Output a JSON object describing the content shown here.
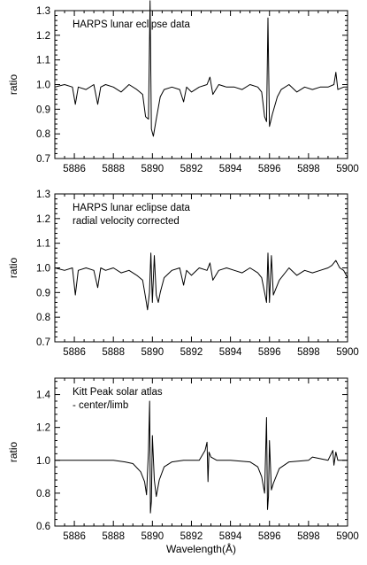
{
  "chart_data": [
    {
      "type": "line",
      "annotation_lines": [
        "HARPS lunar eclipse data"
      ],
      "ylabel": "ratio",
      "xlabel": "",
      "xlim": [
        5885,
        5900
      ],
      "ylim": [
        0.7,
        1.3
      ],
      "xticks": [
        5886,
        5888,
        5890,
        5892,
        5894,
        5896,
        5898,
        5900
      ],
      "yticks": [
        0.7,
        0.8,
        0.9,
        1.0,
        1.1,
        1.2,
        1.3
      ],
      "ytick_labels": [
        "0.7",
        "0.8",
        "0.9",
        "1.0",
        "1.1",
        "1.2",
        "1.3"
      ],
      "series": [
        {
          "x": [
            5885.0,
            5885.5,
            5885.9,
            5886.05,
            5886.2,
            5886.6,
            5887.0,
            5887.2,
            5887.35,
            5887.6,
            5888.0,
            5888.4,
            5888.8,
            5889.2,
            5889.5,
            5889.65,
            5889.8,
            5889.88,
            5889.95,
            5890.05,
            5890.2,
            5890.4,
            5890.6,
            5891.0,
            5891.4,
            5891.6,
            5891.75,
            5892.0,
            5892.4,
            5892.8,
            5892.95,
            5893.1,
            5893.4,
            5893.8,
            5894.2,
            5894.6,
            5895.0,
            5895.4,
            5895.6,
            5895.75,
            5895.85,
            5895.92,
            5896.0,
            5896.15,
            5896.4,
            5896.6,
            5897.0,
            5897.4,
            5897.8,
            5898.2,
            5898.6,
            5899.0,
            5899.3,
            5899.4,
            5899.5,
            5899.8,
            5900.0
          ],
          "y": [
            0.99,
            1.0,
            0.99,
            0.92,
            0.99,
            0.98,
            1.0,
            0.92,
            0.99,
            1.0,
            0.99,
            0.97,
            1.0,
            0.98,
            0.96,
            0.87,
            0.86,
            1.34,
            0.82,
            0.79,
            0.86,
            0.95,
            0.98,
            0.99,
            0.98,
            0.93,
            0.99,
            0.97,
            0.99,
            1.0,
            1.03,
            0.96,
            1.0,
            0.99,
            0.99,
            0.98,
            1.0,
            0.99,
            0.97,
            0.87,
            0.85,
            1.27,
            0.83,
            0.88,
            0.95,
            0.98,
            1.0,
            0.97,
            0.99,
            0.98,
            0.99,
            0.99,
            1.0,
            1.05,
            0.98,
            0.99,
            0.99
          ]
        }
      ]
    },
    {
      "type": "line",
      "annotation_lines": [
        "HARPS lunar eclipse data",
        "radial velocity corrected"
      ],
      "ylabel": "ratio",
      "xlabel": "",
      "xlim": [
        5885,
        5900
      ],
      "ylim": [
        0.7,
        1.3
      ],
      "xticks": [
        5886,
        5888,
        5890,
        5892,
        5894,
        5896,
        5898,
        5900
      ],
      "yticks": [
        0.7,
        0.8,
        0.9,
        1.0,
        1.1,
        1.2,
        1.3
      ],
      "ytick_labels": [
        "0.7",
        "0.8",
        "0.9",
        "1.0",
        "1.1",
        "1.2",
        "1.3"
      ],
      "series": [
        {
          "x": [
            5885.0,
            5885.5,
            5885.9,
            5886.05,
            5886.2,
            5886.6,
            5887.0,
            5887.2,
            5887.35,
            5887.6,
            5888.0,
            5888.4,
            5888.8,
            5889.2,
            5889.5,
            5889.65,
            5889.75,
            5889.85,
            5889.92,
            5890.0,
            5890.1,
            5890.2,
            5890.3,
            5890.4,
            5890.6,
            5891.0,
            5891.4,
            5891.6,
            5891.75,
            5892.0,
            5892.4,
            5892.8,
            5892.95,
            5893.1,
            5893.4,
            5893.8,
            5894.2,
            5894.6,
            5895.0,
            5895.4,
            5895.6,
            5895.75,
            5895.85,
            5895.92,
            5896.0,
            5896.1,
            5896.2,
            5896.5,
            5897.0,
            5897.4,
            5897.8,
            5898.2,
            5898.6,
            5899.0,
            5899.2,
            5899.4,
            5899.6,
            5899.8,
            5900.0
          ],
          "y": [
            1.0,
            0.99,
            1.0,
            0.89,
            0.99,
            1.0,
            0.99,
            0.92,
            1.0,
            0.99,
            1.0,
            0.98,
            0.99,
            0.97,
            0.95,
            0.88,
            0.83,
            0.9,
            1.06,
            0.86,
            1.05,
            0.89,
            0.86,
            0.9,
            0.96,
            0.99,
            1.0,
            0.93,
            0.99,
            0.97,
            1.0,
            0.99,
            1.02,
            0.95,
            0.99,
            1.0,
            0.99,
            0.98,
            1.0,
            0.98,
            0.96,
            0.9,
            0.86,
            1.06,
            0.86,
            1.05,
            0.89,
            0.95,
            1.0,
            0.97,
            0.99,
            0.98,
            0.99,
            1.0,
            1.01,
            1.03,
            1.0,
            0.99,
            0.96
          ]
        }
      ]
    },
    {
      "type": "line",
      "annotation_lines": [
        "Kitt Peak solar atlas",
        "- center/limb"
      ],
      "ylabel": "ratio",
      "xlabel": "Wavelength(Å)",
      "xlim": [
        5885,
        5900
      ],
      "ylim": [
        0.6,
        1.5
      ],
      "xticks": [
        5886,
        5888,
        5890,
        5892,
        5894,
        5896,
        5898,
        5900
      ],
      "yticks": [
        0.6,
        0.8,
        1.0,
        1.2,
        1.4
      ],
      "ytick_labels": [
        "0.6",
        "0.8",
        "1.0",
        "1.2",
        "1.4"
      ],
      "series": [
        {
          "x": [
            5885.0,
            5886.0,
            5887.0,
            5888.0,
            5888.6,
            5889.0,
            5889.4,
            5889.6,
            5889.7,
            5889.8,
            5889.86,
            5889.9,
            5889.95,
            5890.0,
            5890.1,
            5890.2,
            5890.35,
            5890.6,
            5891.0,
            5891.6,
            5892.4,
            5892.7,
            5892.8,
            5892.85,
            5892.9,
            5893.0,
            5893.3,
            5894.0,
            5895.0,
            5895.4,
            5895.6,
            5895.75,
            5895.85,
            5895.9,
            5895.95,
            5896.0,
            5896.1,
            5896.2,
            5896.5,
            5897.0,
            5898.0,
            5898.2,
            5899.0,
            5899.25,
            5899.3,
            5899.4,
            5899.5,
            5900.0
          ],
          "y": [
            1.0,
            1.0,
            1.0,
            1.0,
            0.99,
            0.98,
            0.93,
            0.87,
            0.79,
            1.06,
            1.36,
            0.68,
            0.75,
            1.15,
            0.88,
            0.78,
            0.88,
            0.96,
            0.99,
            1.0,
            1.0,
            1.06,
            1.11,
            0.87,
            1.05,
            1.02,
            1.0,
            1.0,
            0.99,
            0.96,
            0.9,
            0.8,
            1.26,
            0.7,
            0.78,
            1.12,
            0.82,
            0.86,
            0.95,
            0.99,
            1.0,
            1.02,
            1.0,
            1.06,
            0.97,
            1.05,
            1.0,
            1.0
          ]
        }
      ]
    }
  ]
}
